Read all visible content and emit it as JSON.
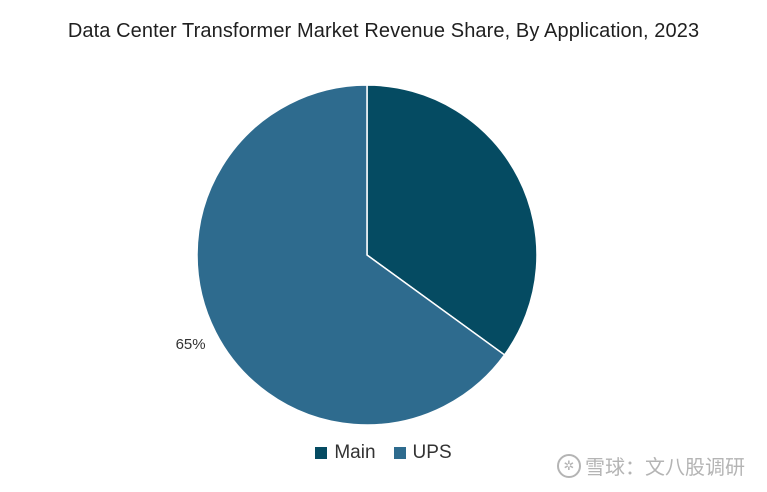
{
  "chart_data": {
    "type": "pie",
    "title": "Data Center Transformer Market Revenue Share, By Application, 2023",
    "categories": [
      "Main",
      "UPS"
    ],
    "values": [
      35,
      65
    ],
    "data_labels": [
      "",
      "65%"
    ],
    "colors": [
      "#054b62",
      "#2e6b8e"
    ],
    "legend_position": "bottom"
  },
  "watermark": {
    "logo": "✲",
    "text": "雪球：文八股调研"
  }
}
